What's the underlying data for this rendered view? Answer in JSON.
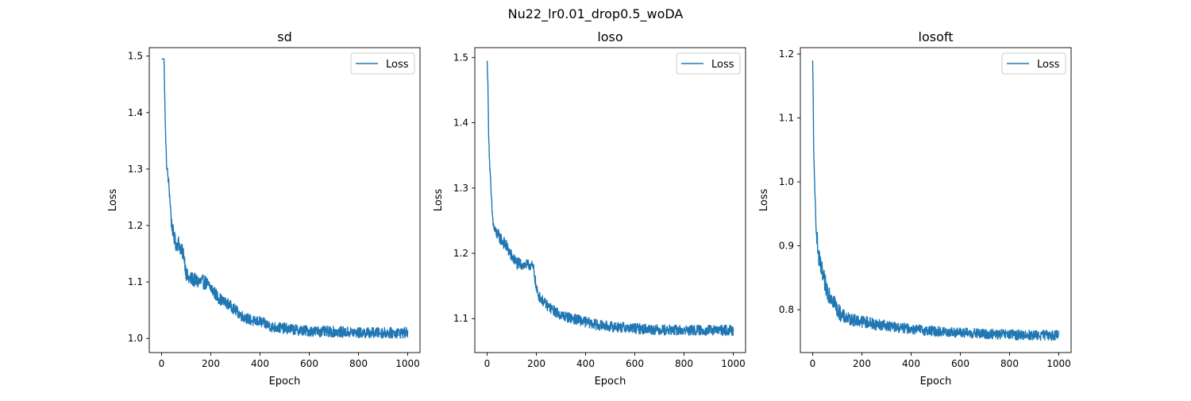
{
  "figure": {
    "suptitle": "Nu22_lr0.01_drop0.5_woDA"
  },
  "chart_data": [
    {
      "type": "line",
      "title": "sd",
      "xlabel": "Epoch",
      "ylabel": "Loss",
      "xlim": [
        -50,
        1050
      ],
      "ylim": [
        0.975,
        1.515
      ],
      "xticks": [
        0,
        200,
        400,
        600,
        800,
        1000
      ],
      "yticks": [
        1.0,
        1.1,
        1.2,
        1.3,
        1.4,
        1.5
      ],
      "ytick_decimals": 1,
      "grid": false,
      "legend": "top-right",
      "color": "#1f77b4",
      "series": [
        {
          "name": "Loss",
          "x": [
            0,
            5,
            10,
            15,
            20,
            25,
            30,
            35,
            40,
            50,
            60,
            70,
            80,
            90,
            100,
            110,
            125,
            150,
            175,
            200,
            225,
            250,
            275,
            300,
            325,
            350,
            375,
            400,
            450,
            500,
            550,
            600,
            650,
            700,
            750,
            800,
            850,
            900,
            950,
            1000
          ],
          "y": [
            1.495,
            1.495,
            1.495,
            1.38,
            1.31,
            1.29,
            1.27,
            1.24,
            1.205,
            1.18,
            1.165,
            1.17,
            1.155,
            1.15,
            1.115,
            1.105,
            1.105,
            1.1,
            1.1,
            1.09,
            1.075,
            1.065,
            1.06,
            1.05,
            1.04,
            1.035,
            1.03,
            1.03,
            1.02,
            1.018,
            1.015,
            1.013,
            1.012,
            1.012,
            1.011,
            1.01,
            1.01,
            1.01,
            1.01,
            1.01
          ],
          "noise": [
            0.0,
            0.0,
            0.0,
            0.004,
            0.005,
            0.005,
            0.006,
            0.006,
            0.007,
            0.008,
            0.008,
            0.008,
            0.008,
            0.008,
            0.008,
            0.008,
            0.008,
            0.008,
            0.008,
            0.007,
            0.007,
            0.006,
            0.006,
            0.006,
            0.006,
            0.006,
            0.006,
            0.006,
            0.006,
            0.006,
            0.006,
            0.006,
            0.006,
            0.006,
            0.006,
            0.006,
            0.006,
            0.006,
            0.006,
            0.006
          ]
        }
      ]
    },
    {
      "type": "line",
      "title": "loso",
      "xlabel": "Epoch",
      "ylabel": "Loss",
      "xlim": [
        -50,
        1050
      ],
      "ylim": [
        1.048,
        1.515
      ],
      "xticks": [
        0,
        200,
        400,
        600,
        800,
        1000
      ],
      "yticks": [
        1.1,
        1.2,
        1.3,
        1.4,
        1.5
      ],
      "ytick_decimals": 1,
      "grid": false,
      "legend": "top-right",
      "color": "#1f77b4",
      "series": [
        {
          "name": "Loss",
          "x": [
            0,
            3,
            6,
            10,
            15,
            20,
            25,
            30,
            40,
            50,
            60,
            80,
            100,
            120,
            150,
            180,
            190,
            200,
            210,
            230,
            260,
            300,
            350,
            400,
            450,
            500,
            600,
            700,
            800,
            900,
            1000
          ],
          "y": [
            1.495,
            1.46,
            1.39,
            1.34,
            1.3,
            1.265,
            1.245,
            1.235,
            1.23,
            1.225,
            1.22,
            1.21,
            1.195,
            1.185,
            1.182,
            1.182,
            1.175,
            1.145,
            1.135,
            1.125,
            1.115,
            1.105,
            1.1,
            1.095,
            1.09,
            1.088,
            1.085,
            1.083,
            1.082,
            1.082,
            1.082
          ],
          "noise": [
            0.0,
            0.003,
            0.004,
            0.005,
            0.005,
            0.005,
            0.005,
            0.005,
            0.006,
            0.006,
            0.006,
            0.006,
            0.006,
            0.006,
            0.005,
            0.005,
            0.005,
            0.005,
            0.005,
            0.005,
            0.005,
            0.005,
            0.005,
            0.005,
            0.005,
            0.005,
            0.005,
            0.005,
            0.005,
            0.005,
            0.005
          ]
        }
      ]
    },
    {
      "type": "line",
      "title": "losoft",
      "xlabel": "Epoch",
      "ylabel": "Loss",
      "xlim": [
        -50,
        1050
      ],
      "ylim": [
        0.733,
        1.21
      ],
      "xticks": [
        0,
        200,
        400,
        600,
        800,
        1000
      ],
      "yticks": [
        0.8,
        0.9,
        1.0,
        1.1,
        1.2
      ],
      "ytick_decimals": 1,
      "grid": false,
      "legend": "top-right",
      "color": "#1f77b4",
      "series": [
        {
          "name": "Loss",
          "x": [
            0,
            2,
            4,
            7,
            10,
            15,
            20,
            25,
            30,
            40,
            50,
            60,
            80,
            100,
            120,
            150,
            200,
            250,
            300,
            350,
            400,
            500,
            600,
            700,
            800,
            900,
            1000
          ],
          "y": [
            1.19,
            1.14,
            1.06,
            1.0,
            0.97,
            0.93,
            0.9,
            0.88,
            0.87,
            0.855,
            0.84,
            0.83,
            0.82,
            0.8,
            0.79,
            0.785,
            0.782,
            0.778,
            0.775,
            0.772,
            0.77,
            0.766,
            0.764,
            0.762,
            0.761,
            0.76,
            0.76
          ],
          "noise": [
            0.0,
            0.004,
            0.006,
            0.007,
            0.008,
            0.009,
            0.01,
            0.01,
            0.01,
            0.01,
            0.01,
            0.01,
            0.01,
            0.008,
            0.007,
            0.006,
            0.006,
            0.006,
            0.005,
            0.005,
            0.005,
            0.005,
            0.005,
            0.005,
            0.005,
            0.005,
            0.005
          ]
        }
      ]
    }
  ]
}
